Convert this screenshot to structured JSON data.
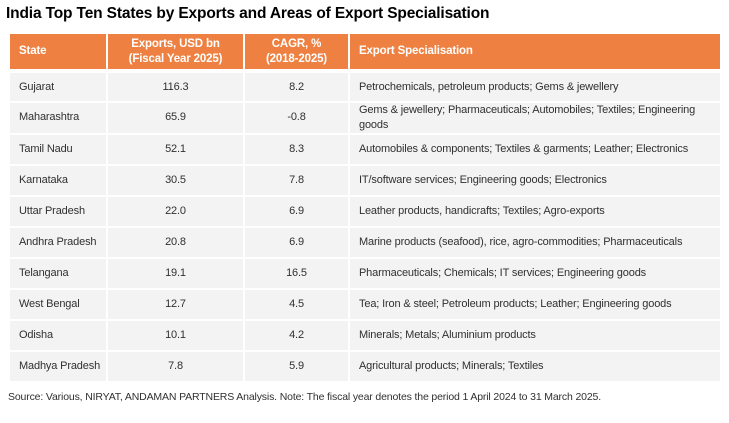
{
  "title": "India Top Ten States by Exports and Areas of Export Specialisation",
  "colors": {
    "header_bg": "#EE8142",
    "header_text": "#FFFFFF",
    "row_bg": "#F3F3F3",
    "body_text": "#303030"
  },
  "table": {
    "columns": [
      {
        "label": "State"
      },
      {
        "label": "Exports, USD bn\n(Fiscal Year 2025)"
      },
      {
        "label": "CAGR, %\n(2018-2025)"
      },
      {
        "label": "Export Specialisation"
      }
    ],
    "rows": [
      {
        "state": "Gujarat",
        "exports": "116.3",
        "cagr": "8.2",
        "specialisation": "Petrochemicals, petroleum products; Gems & jewellery"
      },
      {
        "state": "Maharashtra",
        "exports": "65.9",
        "cagr": "-0.8",
        "specialisation": "Gems & jewellery; Pharmaceuticals; Automobiles; Textiles; Engineering goods"
      },
      {
        "state": "Tamil Nadu",
        "exports": "52.1",
        "cagr": "8.3",
        "specialisation": "Automobiles & components; Textiles & garments; Leather; Electronics"
      },
      {
        "state": "Karnataka",
        "exports": "30.5",
        "cagr": "7.8",
        "specialisation": "IT/software services; Engineering goods; Electronics"
      },
      {
        "state": "Uttar Pradesh",
        "exports": "22.0",
        "cagr": "6.9",
        "specialisation": "Leather products, handicrafts; Textiles; Agro-exports"
      },
      {
        "state": "Andhra Pradesh",
        "exports": "20.8",
        "cagr": "6.9",
        "specialisation": "Marine products (seafood), rice, agro-commodities; Pharmaceuticals"
      },
      {
        "state": "Telangana",
        "exports": "19.1",
        "cagr": "16.5",
        "specialisation": "Pharmaceuticals; Chemicals; IT services; Engineering goods"
      },
      {
        "state": "West Bengal",
        "exports": "12.7",
        "cagr": "4.5",
        "specialisation": "Tea; Iron & steel; Petroleum products; Leather; Engineering goods"
      },
      {
        "state": "Odisha",
        "exports": "10.1",
        "cagr": "4.2",
        "specialisation": "Minerals; Metals; Aluminium products"
      },
      {
        "state": "Madhya Pradesh",
        "exports": "7.8",
        "cagr": "5.9",
        "specialisation": "Agricultural products; Minerals; Textiles"
      }
    ]
  },
  "footnote": "Source: Various, NIRYAT, ANDAMAN PARTNERS Analysis. Note: The fiscal year denotes the period 1 April 2024 to 31 March 2025."
}
